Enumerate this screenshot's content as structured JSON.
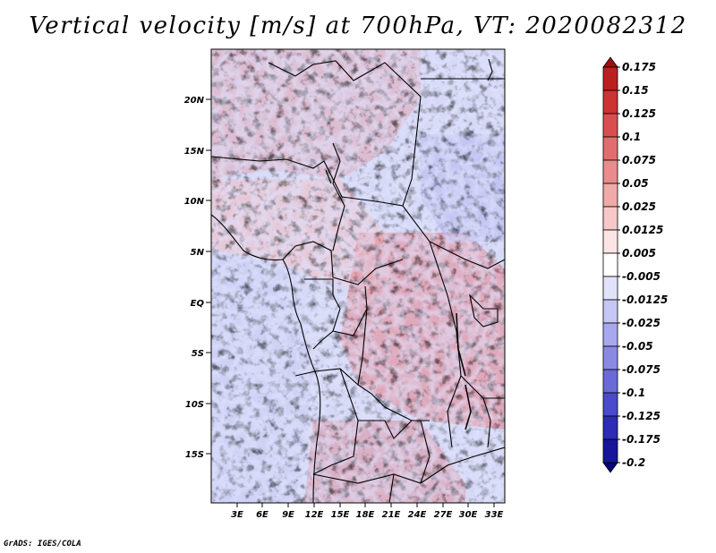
{
  "title": "Vertical velocity [m/s] at 700hPa, VT: 2020082312",
  "credit": "GrADS: IGES/COLA",
  "map": {
    "lat_labels": [
      "20N",
      "15N",
      "10N",
      "5N",
      "EQ",
      "5S",
      "10S",
      "15S"
    ],
    "lon_labels": [
      "3E",
      "6E",
      "9E",
      "12E",
      "15E",
      "18E",
      "21E",
      "24E",
      "27E",
      "30E",
      "33E"
    ],
    "lat_range": [
      -19,
      24
    ],
    "lon_range": [
      0,
      34
    ]
  },
  "colorbar": {
    "labels": [
      "0.175",
      "0.15",
      "0.125",
      "0.1",
      "0.075",
      "0.05",
      "0.025",
      "0.0125",
      "0.005",
      "-0.005",
      "-0.0125",
      "-0.025",
      "-0.05",
      "-0.075",
      "-0.1",
      "-0.125",
      "-0.175",
      "-0.2"
    ],
    "colors": [
      "#a50d0d",
      "#bb2020",
      "#cc3333",
      "#d94f4f",
      "#e06e6e",
      "#e88c8c",
      "#f0aaaa",
      "#f6c8c8",
      "#fbe4e4",
      "#ffffff",
      "#e2e2fb",
      "#c6c6f4",
      "#a8a8ee",
      "#8a8ae4",
      "#6a6ad8",
      "#4a4acc",
      "#2c2cb4",
      "#161698",
      "#060676"
    ]
  }
}
